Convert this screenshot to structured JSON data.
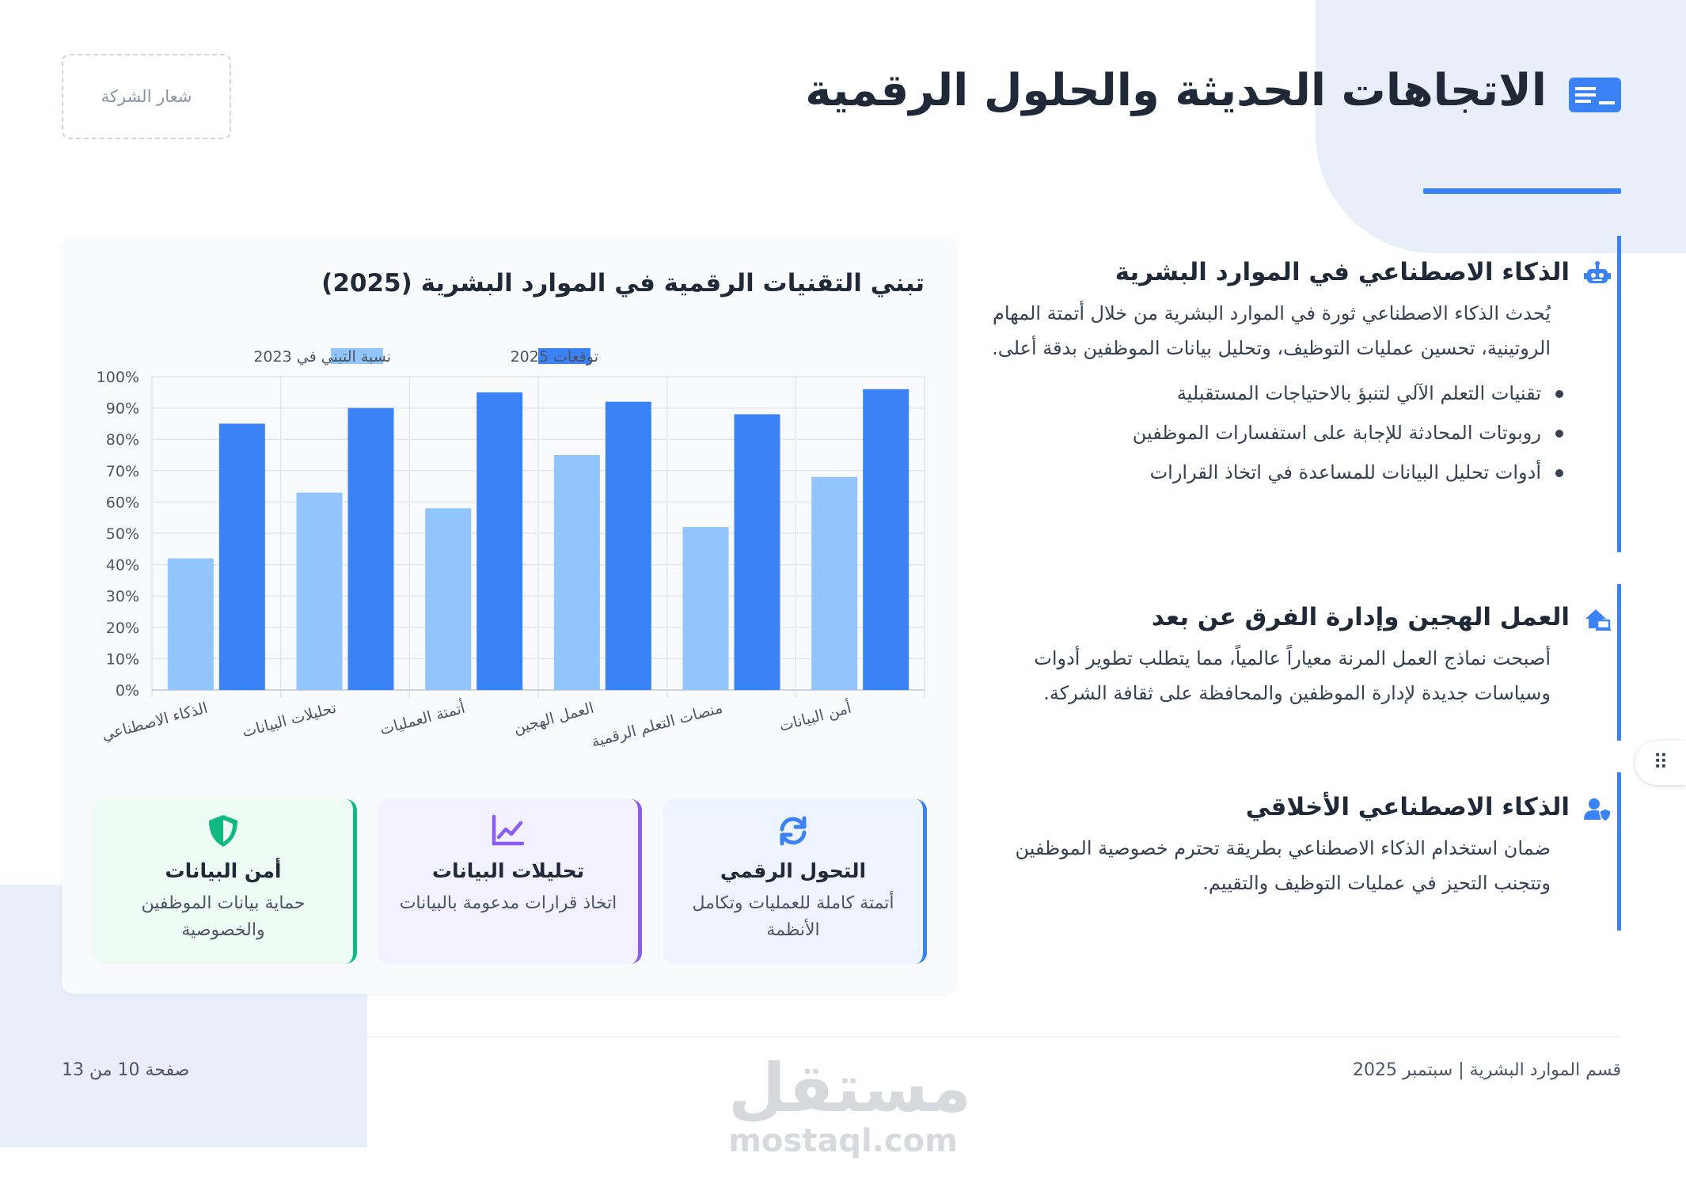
{
  "header": {
    "logo_placeholder": "شعار الشركة",
    "title": "الاتجاهات الحديثة والحلول الرقمية",
    "title_icon": "computer-icon"
  },
  "sections": [
    {
      "title": "الذكاء الاصطناعي في الموارد البشرية",
      "icon": "robot-icon",
      "body": "يُحدث الذكاء الاصطناعي ثورة في الموارد البشرية من خلال أتمتة المهام الروتينية، تحسين عمليات التوظيف، وتحليل بيانات الموظفين بدقة أعلى.",
      "bullets": [
        "تقنيات التعلم الآلي لتنبؤ بالاحتياجات المستقبلية",
        "روبوتات المحادثة للإجابة على استفسارات الموظفين",
        "أدوات تحليل البيانات للمساعدة في اتخاذ القرارات"
      ]
    },
    {
      "title": "العمل الهجين وإدارة الفرق عن بعد",
      "icon": "house-laptop-icon",
      "body": "أصبحت نماذج العمل المرنة معياراً عالمياً، مما يتطلب تطوير أدوات وسياسات جديدة لإدارة الموظفين والمحافظة على ثقافة الشركة."
    },
    {
      "title": "الذكاء الاصطناعي الأخلاقي",
      "icon": "user-shield-icon",
      "body": "ضمان استخدام الذكاء الاصطناعي بطريقة تحترم خصوصية الموظفين وتتجنب التحيز في عمليات التوظيف والتقييم."
    }
  ],
  "chart_card": {
    "title": "تبني التقنيات الرقمية في الموارد البشرية (2025)"
  },
  "chart_data": {
    "type": "bar",
    "categories": [
      "الذكاء الاصطناعي",
      "تحليلات البيانات",
      "أتمتة العمليات",
      "العمل الهجين",
      "منصات التعلم الرقمية",
      "أمن البيانات"
    ],
    "series": [
      {
        "name": "نسبة التبني في 2023",
        "values": [
          42,
          63,
          58,
          75,
          52,
          68
        ],
        "color": "#93c5fd"
      },
      {
        "name": "توقعات 2025",
        "values": [
          85,
          90,
          95,
          92,
          88,
          96
        ],
        "color": "#3b82f6"
      }
    ],
    "ylim": [
      0,
      100
    ],
    "yticks": [
      "0%",
      "10%",
      "20%",
      "30%",
      "40%",
      "50%",
      "60%",
      "70%",
      "80%",
      "90%",
      "100%"
    ],
    "grid": true,
    "legend": "top-center"
  },
  "feature_cards": [
    {
      "title": "التحول الرقمي",
      "subtitle": "أتمتة كاملة للعمليات وتكامل الأنظمة",
      "icon": "sync-icon",
      "accent": "#3b82f6",
      "bg": "#eef4fd"
    },
    {
      "title": "تحليلات البيانات",
      "subtitle": "اتخاذ قرارات مدعومة بالبيانات",
      "icon": "line-chart-icon",
      "accent": "#8b5cf6",
      "bg": "#f3f1fd"
    },
    {
      "title": "أمن البيانات",
      "subtitle": "حماية بيانات الموظفين والخصوصية",
      "icon": "shield-icon",
      "accent": "#10b981",
      "bg": "#ecfbf4"
    }
  ],
  "footer": {
    "left": "صفحة 10 من 13",
    "right": "قسم الموارد البشرية | سبتمبر 2025",
    "watermark_ar": "مستقل",
    "watermark_en": "mostaql.com"
  }
}
